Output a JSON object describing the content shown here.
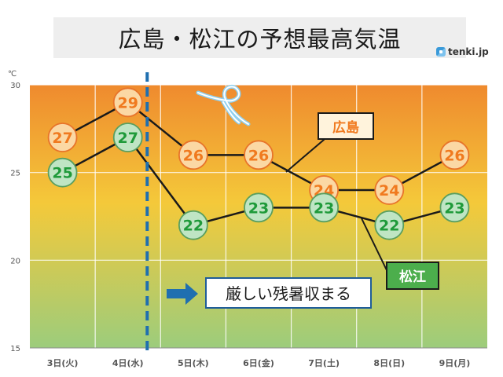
{
  "header": {
    "title": "広島・松江の予想最高気温",
    "brand": "tenki.jp"
  },
  "chart_data": {
    "type": "line",
    "title": "広島・松江の予想最高気温",
    "unit": "℃",
    "categories": [
      "3日(火)",
      "4日(水)",
      "5日(木)",
      "6日(金)",
      "7日(土)",
      "8日(日)",
      "9日(月)"
    ],
    "y_ticks": [
      15,
      20,
      25,
      30
    ],
    "ylim": [
      15,
      30
    ],
    "grid": true,
    "series": [
      {
        "name": "広島",
        "values": [
          27,
          29,
          26,
          26,
          24,
          24,
          26
        ],
        "color": "#fbd8a4",
        "border": "#e8742a",
        "text_color": "#f07a1f",
        "label_fill": "#fff3dc"
      },
      {
        "name": "松江",
        "values": [
          25,
          27,
          22,
          23,
          23,
          22,
          23
        ],
        "color": "#bfe5c4",
        "border": "#5a9f5f",
        "text_color": "#1f9a3a",
        "label_fill": "#4cae4c"
      }
    ],
    "annotation": {
      "text": "厳しい残暑収まる",
      "divider_after_category": 1
    },
    "colors": {
      "gradient_top": "#ef8a2e",
      "gradient_mid": "#f4c93a",
      "gradient_bottom": "#9ccc7c",
      "divider": "#1f6fb0",
      "arrow": "#1f6fb0"
    }
  }
}
